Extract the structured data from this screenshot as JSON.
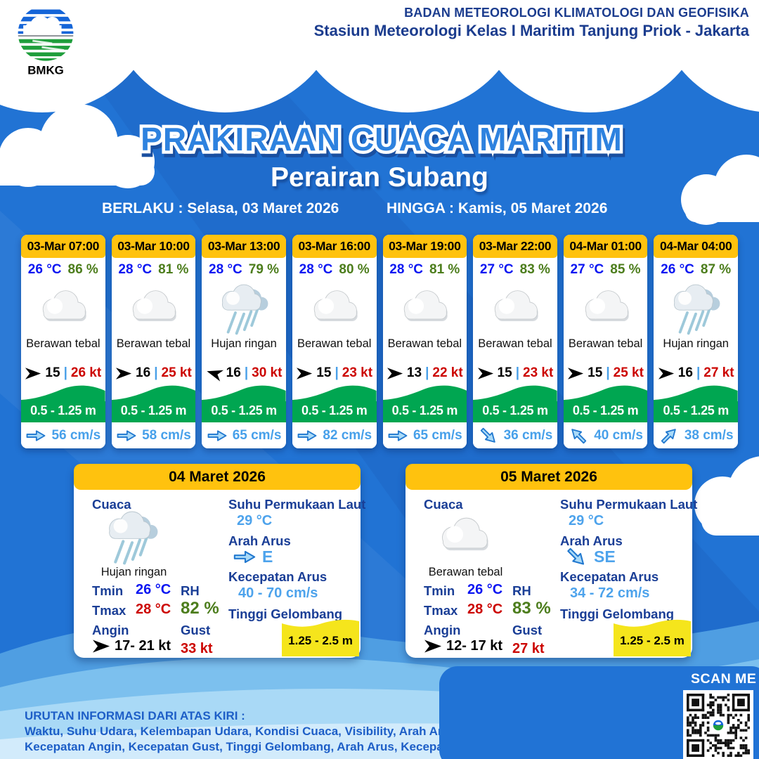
{
  "colors": {
    "background_blue": "#2173D4",
    "header_yellow": "#FFC20E",
    "wave_green": "#00A651",
    "wave_yellow": "#F5E51C",
    "temp_blue": "#0B16F2",
    "humidity_green": "#4C7D1C",
    "alert_red": "#CC0400",
    "navy_label": "#1A3E96",
    "current_blue": "#47A0EA",
    "footer_blue": "#1D5EC7"
  },
  "header": {
    "logo_text": "BMKG",
    "org_line1": "BADAN METEOROLOGI KLIMATOLOGI DAN GEOFISIKA",
    "org_line2": "Stasiun Meteorologi Kelas I Maritim Tanjung Priok - Jakarta"
  },
  "title": {
    "main": "PRAKIRAAN CUACA MARITIM",
    "area": "Perairan Subang",
    "berlaku_label": "BERLAKU :",
    "berlaku_value": "Selasa, 03 Maret 2026",
    "hingga_label": "HINGGA :",
    "hingga_value": "Kamis, 05 Maret 2026"
  },
  "wind_sep": "|",
  "hourly_cards": [
    {
      "time": "03-Mar 07:00",
      "temp": "26 °C",
      "humidity": "86 %",
      "condition": "Berawan tebal",
      "icon": "berawan-tebal",
      "wind_min": "15",
      "wind_max": "26 kt",
      "wind_deg": 0,
      "wave": "0.5 - 1.25 m",
      "current": "56 cm/s",
      "current_deg": 0
    },
    {
      "time": "03-Mar 10:00",
      "temp": "28 °C",
      "humidity": "81 %",
      "condition": "Berawan tebal",
      "icon": "berawan-tebal",
      "wind_min": "16",
      "wind_max": "25 kt",
      "wind_deg": 0,
      "wave": "0.5 - 1.25 m",
      "current": "58 cm/s",
      "current_deg": 0
    },
    {
      "time": "03-Mar 13:00",
      "temp": "28 °C",
      "humidity": "79 %",
      "condition": "Hujan ringan",
      "icon": "hujan-ringan",
      "wind_min": "16",
      "wind_max": "30 kt",
      "wind_deg": 197,
      "wave": "0.5 - 1.25 m",
      "current": "65 cm/s",
      "current_deg": 0
    },
    {
      "time": "03-Mar 16:00",
      "temp": "28 °C",
      "humidity": "80 %",
      "condition": "Berawan tebal",
      "icon": "berawan-tebal",
      "wind_min": "15",
      "wind_max": "23 kt",
      "wind_deg": 0,
      "wave": "0.5 - 1.25 m",
      "current": "82 cm/s",
      "current_deg": 0
    },
    {
      "time": "03-Mar 19:00",
      "temp": "28 °C",
      "humidity": "81 %",
      "condition": "Berawan tebal",
      "icon": "berawan-tebal",
      "wind_min": "13",
      "wind_max": "22 kt",
      "wind_deg": 0,
      "wave": "0.5 - 1.25 m",
      "current": "65 cm/s",
      "current_deg": 0
    },
    {
      "time": "03-Mar 22:00",
      "temp": "27 °C",
      "humidity": "83 %",
      "condition": "Berawan tebal",
      "icon": "berawan-tebal",
      "wind_min": "15",
      "wind_max": "23 kt",
      "wind_deg": 0,
      "wave": "0.5 - 1.25 m",
      "current": "36 cm/s",
      "current_deg": 45
    },
    {
      "time": "04-Mar 01:00",
      "temp": "27 °C",
      "humidity": "85 %",
      "condition": "Berawan tebal",
      "icon": "berawan-tebal",
      "wind_min": "15",
      "wind_max": "25 kt",
      "wind_deg": 0,
      "wave": "0.5 - 1.25 m",
      "current": "40 cm/s",
      "current_deg": -135
    },
    {
      "time": "04-Mar 04:00",
      "temp": "26 °C",
      "humidity": "87 %",
      "condition": "Hujan ringan",
      "icon": "hujan-ringan",
      "wind_min": "16",
      "wind_max": "27 kt",
      "wind_deg": 0,
      "wave": "0.5 - 1.25 m",
      "current": "38 cm/s",
      "current_deg": -45
    }
  ],
  "daily_labels": {
    "cuaca": "Cuaca",
    "tmin": "Tmin",
    "tmax": "Tmax",
    "angin": "Angin",
    "rh": "RH",
    "gust": "Gust",
    "sst": "Suhu Permukaan Laut",
    "arah_arus": "Arah Arus",
    "kecepatan_arus": "Kecepatan Arus",
    "tinggi_gelombang": "Tinggi Gelombang"
  },
  "daily_cards": [
    {
      "date": "04 Maret 2026",
      "condition": "Hujan ringan",
      "icon": "hujan-ringan",
      "tmin": "26 °C",
      "tmax": "28 °C",
      "rh": "82 %",
      "angin": "17- 21 kt",
      "wind_deg": 0,
      "gust": "33 kt",
      "sst": "29 °C",
      "arah": "E",
      "arah_deg": 0,
      "kecepatan": "40 - 70 cm/s",
      "tinggi": "1.25 - 2.5 m"
    },
    {
      "date": "05 Maret 2026",
      "condition": "Berawan tebal",
      "icon": "berawan-tebal",
      "tmin": "26 °C",
      "tmax": "28 °C",
      "rh": "83 %",
      "angin": "12- 17 kt",
      "wind_deg": 0,
      "gust": "27 kt",
      "sst": "29 °C",
      "arah": "SE",
      "arah_deg": 45,
      "kecepatan": "34 - 72 cm/s",
      "tinggi": "1.25 - 2.5 m"
    }
  ],
  "footer": {
    "info_title": "URUTAN INFORMASI DARI ATAS KIRI :",
    "info_line1": "Waktu, Suhu Udara, Kelembapan Udara, Kondisi Cuaca, Visibility, Arah Angin,",
    "info_line2": "Kecepatan Angin, Kecepatan Gust, Tinggi Gelombang, Arah Arus, Kecepatan Arus",
    "scan_me": "SCAN ME"
  }
}
